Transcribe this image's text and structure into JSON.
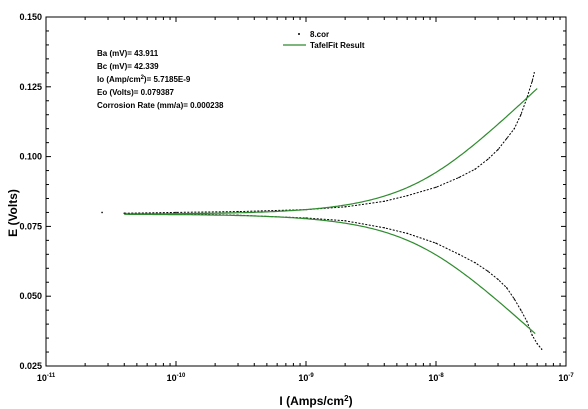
{
  "chart_data": {
    "type": "scatter",
    "title": "",
    "xlabel": "I (Amps/cm²)",
    "ylabel": "E (Volts)",
    "xscale": "log",
    "xlim": [
      1e-11,
      1e-07
    ],
    "ylim": [
      0.025,
      0.15
    ],
    "xticks": [
      {
        "value": 1e-11,
        "label": "10",
        "exp": "-11"
      },
      {
        "value": 1e-10,
        "label": "10",
        "exp": "-10"
      },
      {
        "value": 1e-09,
        "label": "10",
        "exp": "-9"
      },
      {
        "value": 1e-08,
        "label": "10",
        "exp": "-8"
      },
      {
        "value": 1e-07,
        "label": "10",
        "exp": "-7"
      }
    ],
    "yticks": [
      {
        "value": 0.025,
        "label": "0.025"
      },
      {
        "value": 0.05,
        "label": "0.050"
      },
      {
        "value": 0.075,
        "label": "0.075"
      },
      {
        "value": 0.1,
        "label": "0.100"
      },
      {
        "value": 0.125,
        "label": "0.125"
      },
      {
        "value": 0.15,
        "label": "0.150"
      }
    ],
    "grid": false,
    "legend_position": "top-right",
    "annotations": {
      "ba": "Ba (mV)= 43.911",
      "bc": "Bc (mV)= 42.339",
      "io_prefix": "Io (Amp/cm",
      "io_sup": "2",
      "io_suffix": ")= 5.7185E-9",
      "eo": "Eo (Volts)= 0.079387",
      "corrosion": "Corrosion Rate (mm/a)= 0.000238"
    },
    "series": [
      {
        "name": "8.cor",
        "kind": "measured",
        "color": "#000000",
        "anodic": [
          [
            4e-11,
            0.0797
          ],
          [
            1e-10,
            0.08
          ],
          [
            3e-10,
            0.0803
          ],
          [
            1e-09,
            0.081
          ],
          [
            2e-09,
            0.082
          ],
          [
            4e-09,
            0.084
          ],
          [
            6e-09,
            0.086
          ],
          [
            1e-08,
            0.089
          ],
          [
            1.5e-08,
            0.0925
          ],
          [
            2e-08,
            0.0955
          ],
          [
            2.5e-08,
            0.099
          ],
          [
            3e-08,
            0.1025
          ],
          [
            3.5e-08,
            0.1065
          ],
          [
            4e-08,
            0.11
          ],
          [
            4.5e-08,
            0.115
          ],
          [
            5e-08,
            0.121
          ],
          [
            5.5e-08,
            0.127
          ],
          [
            5.7e-08,
            0.13
          ]
        ],
        "cathodic": [
          [
            4e-11,
            0.0797
          ],
          [
            1e-10,
            0.0795
          ],
          [
            3e-10,
            0.079
          ],
          [
            1e-09,
            0.078
          ],
          [
            2e-09,
            0.077
          ],
          [
            4e-09,
            0.0745
          ],
          [
            6e-09,
            0.0725
          ],
          [
            1e-08,
            0.069
          ],
          [
            1.5e-08,
            0.065
          ],
          [
            2e-08,
            0.062
          ],
          [
            2.5e-08,
            0.059
          ],
          [
            3e-08,
            0.056
          ],
          [
            3.5e-08,
            0.053
          ],
          [
            4e-08,
            0.049
          ],
          [
            4.5e-08,
            0.045
          ],
          [
            5e-08,
            0.041
          ],
          [
            5.5e-08,
            0.036
          ],
          [
            6e-08,
            0.033
          ],
          [
            6.5e-08,
            0.031
          ]
        ],
        "stray": [
          [
            2.7e-11,
            0.08
          ]
        ]
      },
      {
        "name": "TafelFit Result",
        "kind": "fit",
        "color": "#2e8b2e",
        "io": 5.7185e-09,
        "eo": 0.079387,
        "ba_v": 0.043911,
        "bc_v": 0.042339,
        "x_from": 4e-11,
        "x_to_anodic": 6e-08,
        "x_to_cathodic": 5.8e-08
      }
    ]
  }
}
